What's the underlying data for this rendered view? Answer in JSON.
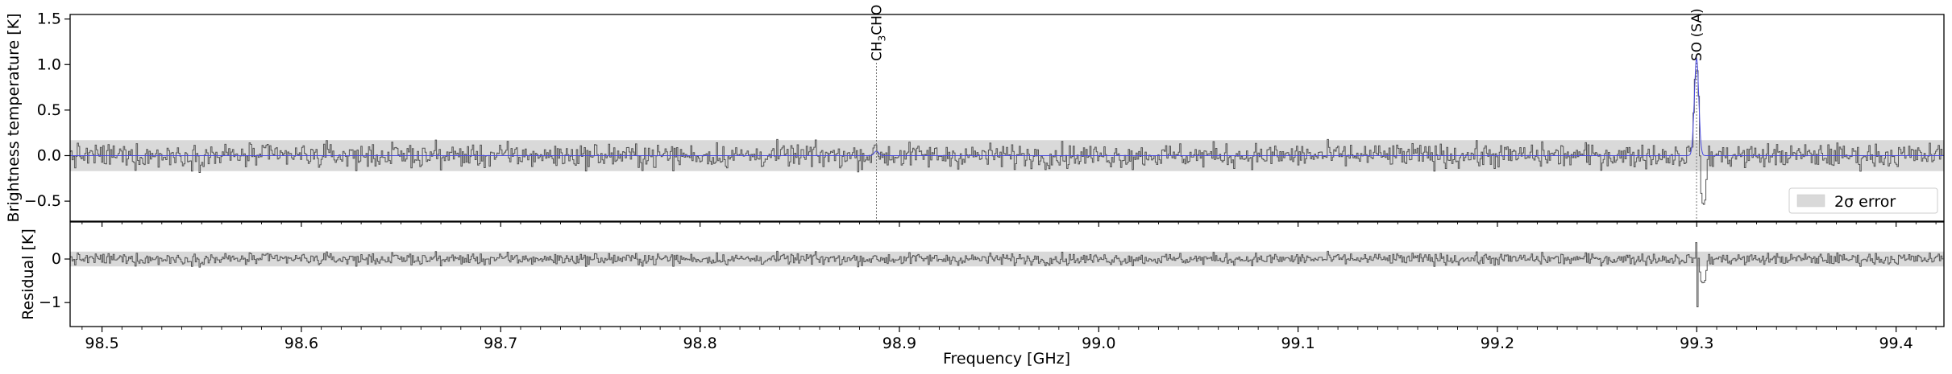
{
  "chart_data": [
    {
      "type": "line",
      "panel": "spectrum",
      "ylabel": "Brightness temperature [K]",
      "xlim": [
        98.484,
        99.424
      ],
      "ylim": [
        -0.72,
        1.55
      ],
      "yticks": [
        -0.5,
        0.0,
        0.5,
        1.0,
        1.5
      ],
      "ytick_labels": [
        "−0.5",
        "0.0",
        "0.5",
        "1.0",
        "1.5"
      ],
      "error_band": {
        "label": "2σ error",
        "lower": -0.17,
        "upper": 0.17,
        "color": "#d9d9d9"
      },
      "legend_position": "lower right",
      "line_ids": [
        {
          "label": "CH3CHO",
          "formula_main": "CH",
          "formula_sub": "3",
          "formula_rest": "CHO",
          "frequency": 98.8885
        },
        {
          "label": "SO (SA)",
          "frequency": 99.2999
        }
      ],
      "series": [
        {
          "role": "observed",
          "style": "step",
          "color": "#555555",
          "noise_rms": 0.075,
          "n_channels": 1460,
          "features": [
            {
              "x": 99.2999,
              "peak": 1.08,
              "absorption": -0.65,
              "absorption_width": 0.006
            }
          ]
        },
        {
          "role": "model",
          "style": "line",
          "color": "#4a4ae0",
          "lines": [
            {
              "x": 99.2999,
              "amplitude": 1.07,
              "sigma": 0.0011
            },
            {
              "x": 98.8885,
              "amplitude": 0.05,
              "sigma": 0.0011
            }
          ]
        }
      ]
    },
    {
      "type": "line",
      "panel": "residual",
      "ylabel": "Residual [K]",
      "xlabel": "Frequency [GHz]",
      "xlim": [
        98.484,
        99.424
      ],
      "ylim": [
        -1.55,
        0.85
      ],
      "yticks": [
        -1,
        0
      ],
      "ytick_labels": [
        "−1",
        "0"
      ],
      "xticks": [
        98.5,
        98.6,
        98.7,
        98.8,
        98.9,
        99.0,
        99.1,
        99.2,
        99.3,
        99.4
      ],
      "xtick_labels": [
        "98.5",
        "98.6",
        "98.7",
        "98.8",
        "98.9",
        "99.0",
        "99.1",
        "99.2",
        "99.3",
        "99.4"
      ],
      "error_band": {
        "lower": -0.17,
        "upper": 0.17,
        "color": "#d9d9d9"
      },
      "series": [
        {
          "role": "residual",
          "style": "step",
          "color": "#555555",
          "noise_rms": 0.06,
          "features": [
            {
              "x": 99.2999,
              "min": -1.22,
              "max": 0.42
            }
          ]
        }
      ]
    }
  ]
}
